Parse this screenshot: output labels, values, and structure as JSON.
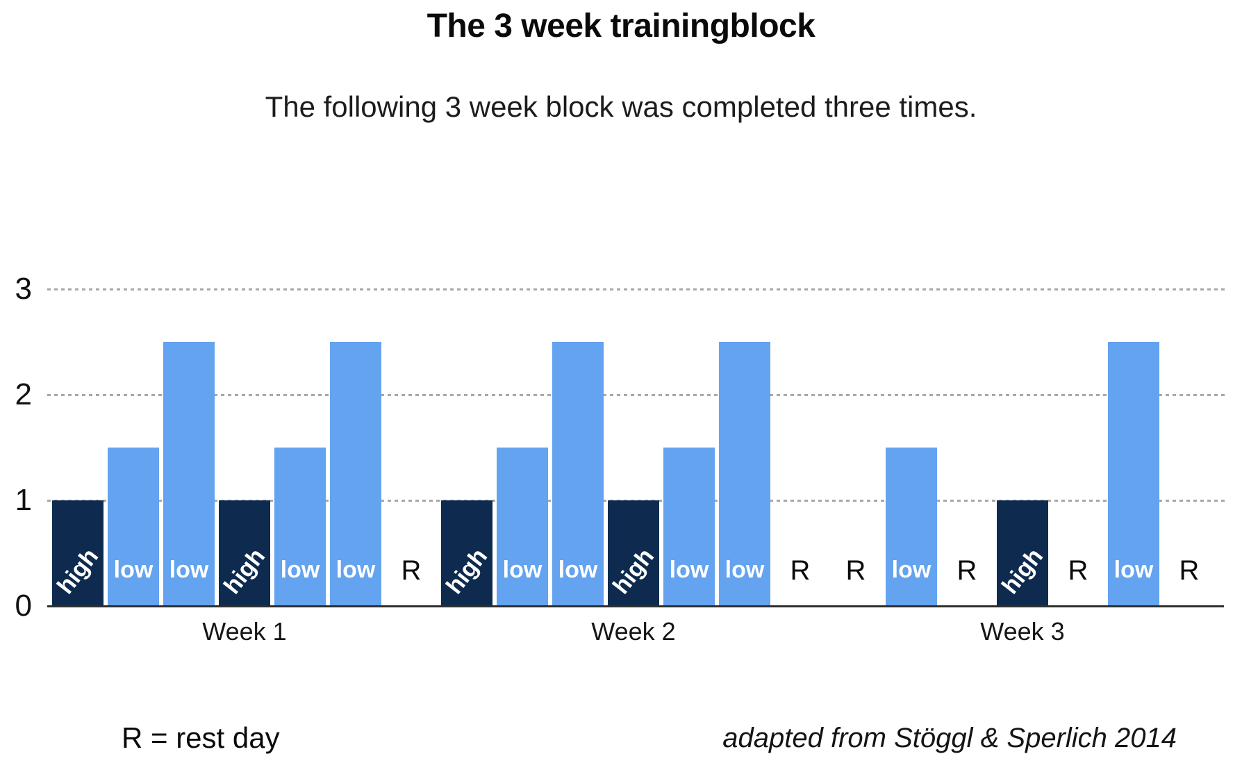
{
  "page": {
    "title": "The 3 week trainingblock",
    "subtitle": "The following 3 week block was completed three times.",
    "footnote": "R = rest day",
    "citation": "adapted from Stöggl & Sperlich 2014"
  },
  "chart_data": {
    "type": "bar",
    "title": "The 3 week trainingblock",
    "subtitle": "The following 3 week block was completed three times.",
    "xlabel": "",
    "ylabel": "",
    "ylim": [
      0,
      3
    ],
    "yticks": [
      "0",
      "1",
      "2",
      "3"
    ],
    "grid": "horizontal dotted lines at 1, 2 and 3",
    "legend_note": "R = rest day",
    "citation": "adapted from Stöggl & Sperlich 2014",
    "colors": {
      "high": "#0e2a4e",
      "low": "#63a3ef",
      "grid": "#a8a8a8",
      "axis": "#2e2e2e",
      "bar_label": "#ffffff",
      "text": "#111111"
    },
    "groups": [
      {
        "label": "Week 1",
        "days": [
          {
            "label": "high",
            "value": 1
          },
          {
            "label": "low",
            "value": 1.5
          },
          {
            "label": "low",
            "value": 2.5
          },
          {
            "label": "high",
            "value": 1
          },
          {
            "label": "low",
            "value": 1.5
          },
          {
            "label": "low",
            "value": 2.5
          },
          {
            "label": "R",
            "value": 0
          }
        ]
      },
      {
        "label": "Week 2",
        "days": [
          {
            "label": "high",
            "value": 1
          },
          {
            "label": "low",
            "value": 1.5
          },
          {
            "label": "low",
            "value": 2.5
          },
          {
            "label": "high",
            "value": 1
          },
          {
            "label": "low",
            "value": 1.5
          },
          {
            "label": "low",
            "value": 2.5
          },
          {
            "label": "R",
            "value": 0
          }
        ]
      },
      {
        "label": "Week 3",
        "days": [
          {
            "label": "R",
            "value": 0
          },
          {
            "label": "low",
            "value": 1.5
          },
          {
            "label": "R",
            "value": 0
          },
          {
            "label": "high",
            "value": 1
          },
          {
            "label": "R",
            "value": 0
          },
          {
            "label": "low",
            "value": 2.5
          },
          {
            "label": "R",
            "value": 0
          }
        ]
      }
    ]
  }
}
